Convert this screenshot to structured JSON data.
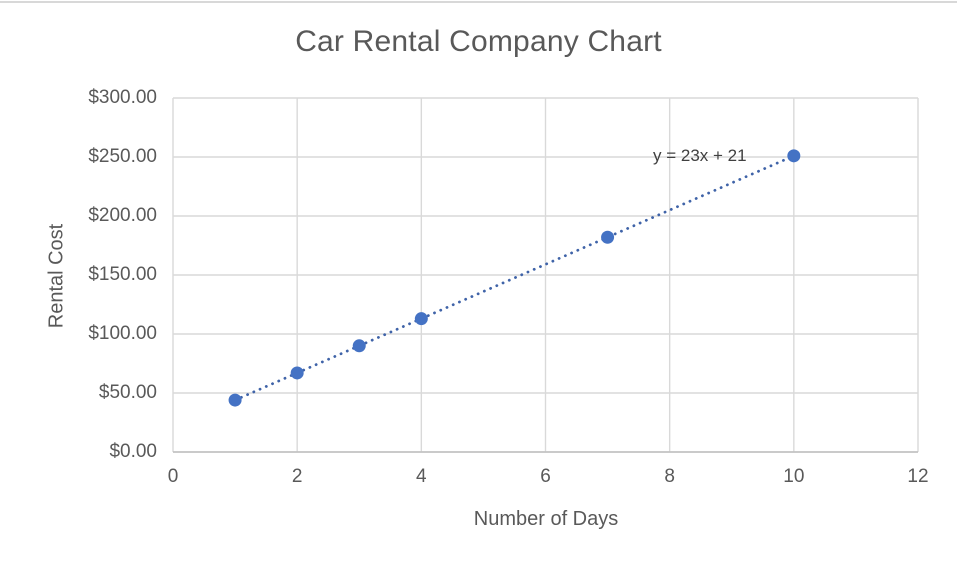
{
  "chart_data": {
    "type": "scatter",
    "title": "Car Rental Company Chart",
    "xlabel": "Number of Days",
    "ylabel": "Rental Cost",
    "xlim": [
      0,
      12
    ],
    "ylim": [
      0,
      300
    ],
    "grid": true,
    "legend": "none",
    "x_ticks": [
      0,
      2,
      4,
      6,
      8,
      10,
      12
    ],
    "x_tick_labels": [
      "0",
      "2",
      "4",
      "6",
      "8",
      "10",
      "12"
    ],
    "y_ticks": [
      0,
      50,
      100,
      150,
      200,
      250,
      300
    ],
    "y_tick_labels": [
      "$0.00",
      "$50.00",
      "$100.00",
      "$150.00",
      "$200.00",
      "$250.00",
      "$300.00"
    ],
    "points": [
      {
        "x": 1,
        "y": 44
      },
      {
        "x": 2,
        "y": 67
      },
      {
        "x": 3,
        "y": 90
      },
      {
        "x": 4,
        "y": 113
      },
      {
        "x": 7,
        "y": 182
      },
      {
        "x": 10,
        "y": 251
      }
    ],
    "trendline": {
      "equation_label": "y = 23x + 21",
      "slope": 23,
      "intercept": 21,
      "x_start": 1,
      "x_end": 10,
      "style": "dotted"
    },
    "colors": {
      "marker": "#4472C4",
      "trendline": "#3F63A8",
      "gridline": "#D9D9D9",
      "axis_line": "#BFBFBF",
      "tick_text": "#595959",
      "title_text": "#595959",
      "equation_text": "#404040"
    }
  }
}
